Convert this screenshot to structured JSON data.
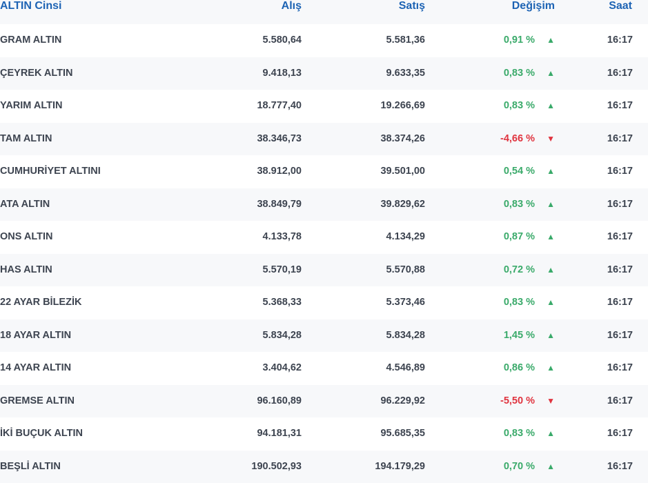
{
  "header": {
    "name": "ALTIN Cinsi",
    "buy": "Alış",
    "sell": "Satış",
    "change": "Değişim",
    "time": "Saat"
  },
  "colors": {
    "header_text": "#1d63b4",
    "up": "#3aaa6a",
    "down": "#e0343f",
    "stripe": "#f7f8fa"
  },
  "rows": [
    {
      "name": "GRAM ALTIN",
      "buy": "5.580,64",
      "sell": "5.581,36",
      "change": "0,91 %",
      "dir": "up",
      "time": "16:17"
    },
    {
      "name": "ÇEYREK ALTIN",
      "buy": "9.418,13",
      "sell": "9.633,35",
      "change": "0,83 %",
      "dir": "up",
      "time": "16:17"
    },
    {
      "name": "YARIM ALTIN",
      "buy": "18.777,40",
      "sell": "19.266,69",
      "change": "0,83 %",
      "dir": "up",
      "time": "16:17"
    },
    {
      "name": "TAM ALTIN",
      "buy": "38.346,73",
      "sell": "38.374,26",
      "change": "-4,66 %",
      "dir": "down",
      "time": "16:17"
    },
    {
      "name": "CUMHURİYET ALTINI",
      "buy": "38.912,00",
      "sell": "39.501,00",
      "change": "0,54 %",
      "dir": "up",
      "time": "16:17"
    },
    {
      "name": "ATA ALTIN",
      "buy": "38.849,79",
      "sell": "39.829,62",
      "change": "0,83 %",
      "dir": "up",
      "time": "16:17"
    },
    {
      "name": "ONS ALTIN",
      "buy": "4.133,78",
      "sell": "4.134,29",
      "change": "0,87 %",
      "dir": "up",
      "time": "16:17"
    },
    {
      "name": "HAS ALTIN",
      "buy": "5.570,19",
      "sell": "5.570,88",
      "change": "0,72 %",
      "dir": "up",
      "time": "16:17"
    },
    {
      "name": "22 AYAR BİLEZİK",
      "buy": "5.368,33",
      "sell": "5.373,46",
      "change": "0,83 %",
      "dir": "up",
      "time": "16:17"
    },
    {
      "name": "18 AYAR ALTIN",
      "buy": "5.834,28",
      "sell": "5.834,28",
      "change": "1,45 %",
      "dir": "up",
      "time": "16:17"
    },
    {
      "name": "14 AYAR ALTIN",
      "buy": "3.404,62",
      "sell": "4.546,89",
      "change": "0,86 %",
      "dir": "up",
      "time": "16:17"
    },
    {
      "name": "GREMSE ALTIN",
      "buy": "96.160,89",
      "sell": "96.229,92",
      "change": "-5,50 %",
      "dir": "down",
      "time": "16:17"
    },
    {
      "name": "İKİ BUÇUK ALTIN",
      "buy": "94.181,31",
      "sell": "95.685,35",
      "change": "0,83 %",
      "dir": "up",
      "time": "16:17"
    },
    {
      "name": "BEŞLİ ALTIN",
      "buy": "190.502,93",
      "sell": "194.179,29",
      "change": "0,70 %",
      "dir": "up",
      "time": "16:17"
    }
  ]
}
